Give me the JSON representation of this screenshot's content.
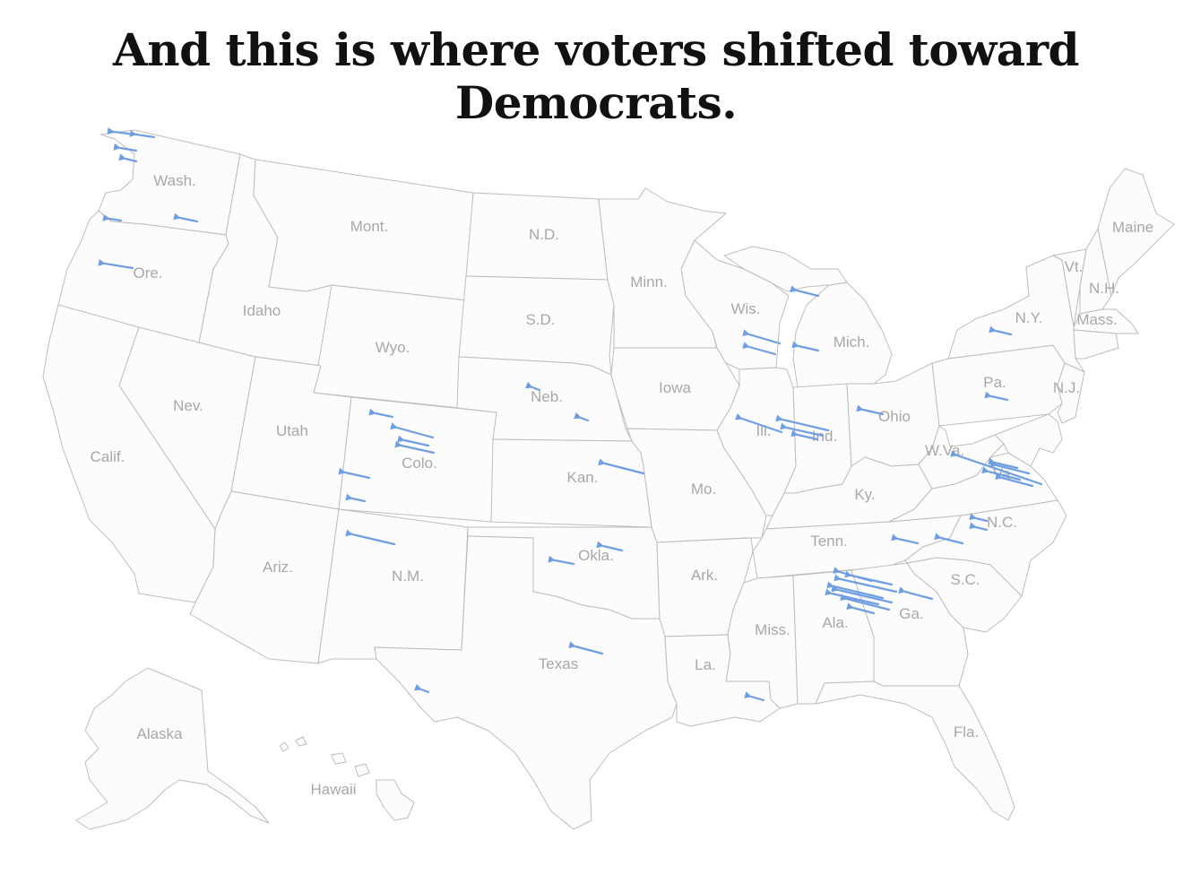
{
  "headline": "And this is where voters shifted toward Democrats.",
  "colors": {
    "land": "#fcfcfc",
    "border": "#bdbdbd",
    "label": "#a8a8a8",
    "shift_arrow": "#6f9fe2"
  },
  "states": [
    {
      "id": "wa",
      "label": "Wash."
    },
    {
      "id": "or",
      "label": "Ore."
    },
    {
      "id": "ca",
      "label": "Calif."
    },
    {
      "id": "nv",
      "label": "Nev."
    },
    {
      "id": "id",
      "label": "Idaho"
    },
    {
      "id": "mt",
      "label": "Mont."
    },
    {
      "id": "wy",
      "label": "Wyo."
    },
    {
      "id": "ut",
      "label": "Utah"
    },
    {
      "id": "co",
      "label": "Colo."
    },
    {
      "id": "az",
      "label": "Ariz."
    },
    {
      "id": "nm",
      "label": "N.M."
    },
    {
      "id": "nd",
      "label": "N.D."
    },
    {
      "id": "sd",
      "label": "S.D."
    },
    {
      "id": "ne",
      "label": "Neb."
    },
    {
      "id": "ks",
      "label": "Kan."
    },
    {
      "id": "ok",
      "label": "Okla."
    },
    {
      "id": "tx",
      "label": "Texas"
    },
    {
      "id": "mn",
      "label": "Minn."
    },
    {
      "id": "ia",
      "label": "Iowa"
    },
    {
      "id": "mo",
      "label": "Mo."
    },
    {
      "id": "ar",
      "label": "Ark."
    },
    {
      "id": "la",
      "label": "La."
    },
    {
      "id": "wi",
      "label": "Wis."
    },
    {
      "id": "il",
      "label": "Ill."
    },
    {
      "id": "mi",
      "label": "Mich."
    },
    {
      "id": "in",
      "label": "Ind."
    },
    {
      "id": "oh",
      "label": "Ohio"
    },
    {
      "id": "ky",
      "label": "Ky."
    },
    {
      "id": "tn",
      "label": "Tenn."
    },
    {
      "id": "ms",
      "label": "Miss."
    },
    {
      "id": "al",
      "label": "Ala."
    },
    {
      "id": "ga",
      "label": "Ga."
    },
    {
      "id": "fl",
      "label": "Fla."
    },
    {
      "id": "sc",
      "label": "S.C."
    },
    {
      "id": "nc",
      "label": "N.C."
    },
    {
      "id": "va",
      "label": "Va."
    },
    {
      "id": "wv",
      "label": "W.Va."
    },
    {
      "id": "pa",
      "label": "Pa."
    },
    {
      "id": "ny",
      "label": "N.Y."
    },
    {
      "id": "vt",
      "label": "Vt."
    },
    {
      "id": "nh",
      "label": "N.H."
    },
    {
      "id": "me",
      "label": "Maine"
    },
    {
      "id": "ma",
      "label": "Mass."
    },
    {
      "id": "nj",
      "label": "N.J."
    },
    {
      "id": "ak",
      "label": "Alaska"
    },
    {
      "id": "hi",
      "label": "Hawaii"
    }
  ]
}
